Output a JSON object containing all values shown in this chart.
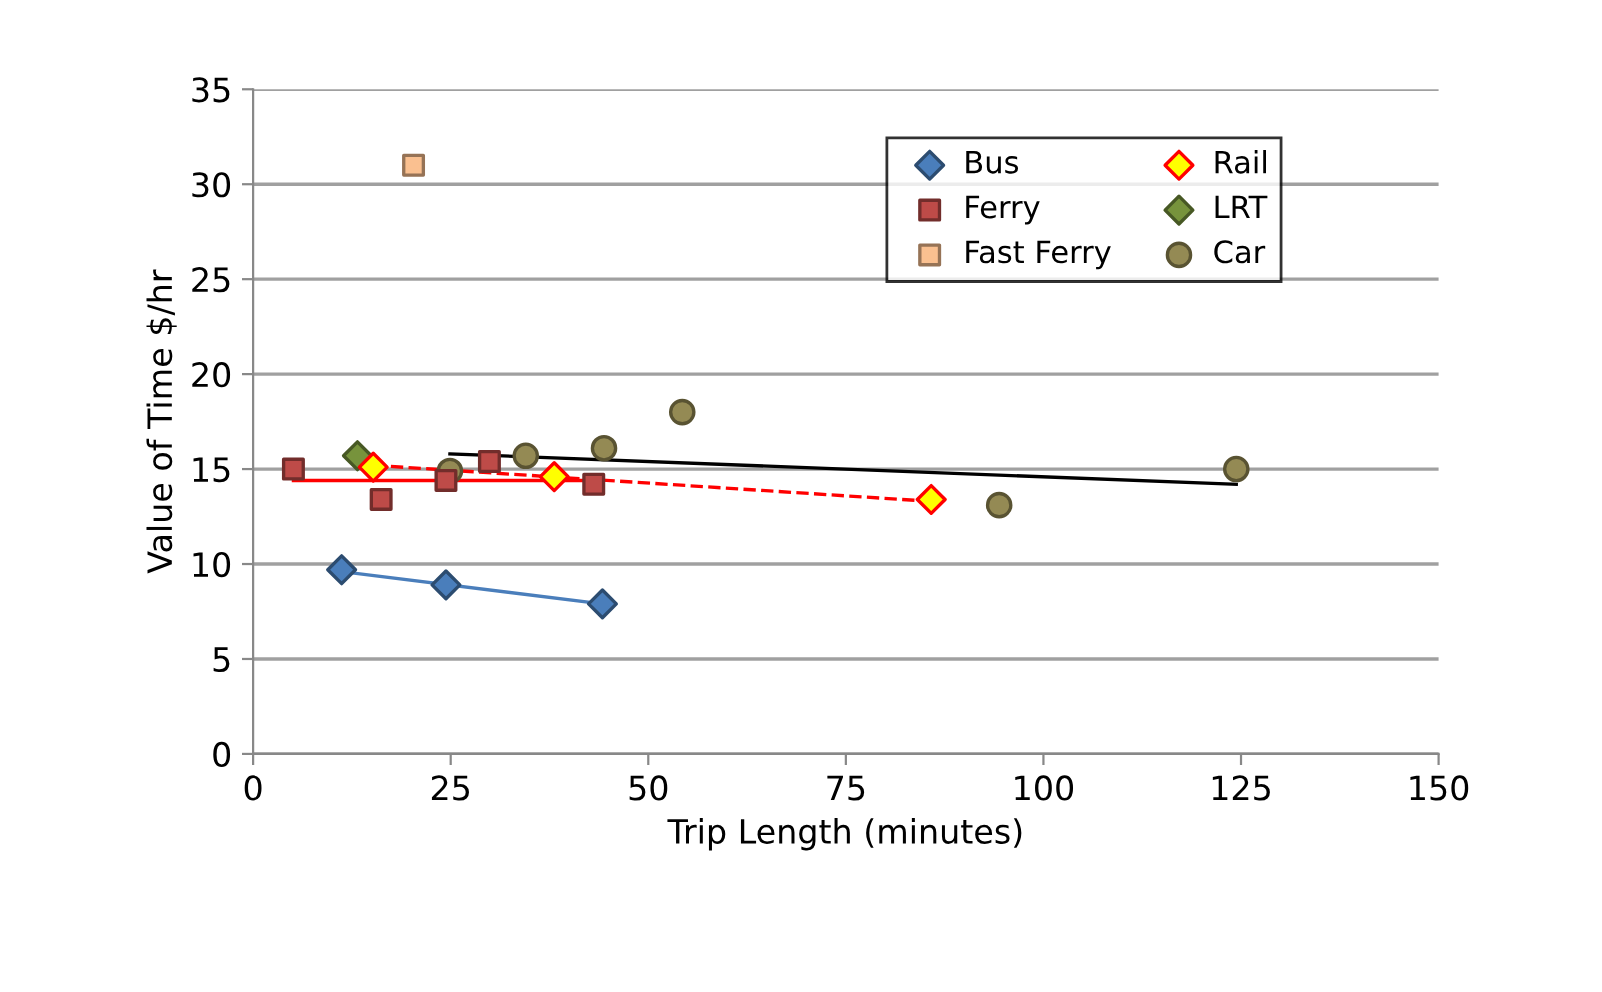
{
  "chart_data": {
    "type": "scatter",
    "xlabel": "Trip Length (minutes)",
    "ylabel": "Value of Time $/hr",
    "xlim": [
      0,
      150
    ],
    "xticks": [
      0,
      25,
      50,
      75,
      100,
      125,
      150
    ],
    "ylim": [
      0,
      35
    ],
    "yticks": [
      0,
      5,
      10,
      15,
      20,
      25,
      30,
      35
    ],
    "grid": "y",
    "legend": "top right",
    "series": [
      {
        "name": "Bus",
        "color": "#4a7ebb",
        "marker": "diamond",
        "x": [
          11.2,
          24.4,
          44.2
        ],
        "values": [
          9.7,
          8.9,
          7.9
        ]
      },
      {
        "name": "Ferry",
        "color": "#be4b48",
        "marker": "square",
        "x": [
          5.1,
          16.2,
          24.4,
          29.9,
          43.1
        ],
        "values": [
          15.0,
          13.4,
          14.4,
          15.4,
          14.2
        ]
      },
      {
        "name": "Fast Ferry",
        "color": "#fac090",
        "marker": "square",
        "x": [
          20.3
        ],
        "values": [
          31.0
        ]
      },
      {
        "name": "Rail",
        "color": "#ffff00",
        "marker": "diamond",
        "x": [
          15.2,
          38.1,
          85.8
        ],
        "values": [
          15.1,
          14.6,
          13.4
        ]
      },
      {
        "name": "LRT",
        "color": "#77933c",
        "marker": "diamond",
        "x": [
          13.2
        ],
        "values": [
          15.7
        ]
      },
      {
        "name": "Car",
        "color": "#948a54",
        "marker": "circle",
        "x": [
          24.9,
          34.5,
          44.4,
          54.3,
          94.4,
          124.4
        ],
        "values": [
          14.9,
          15.7,
          16.1,
          18.0,
          13.1,
          15.0
        ]
      },
      {
        "type": "line",
        "color": "#4a7ebb",
        "line_style": "solid",
        "x": [
          11.2,
          44.2
        ],
        "values": [
          9.6,
          7.9
        ]
      },
      {
        "type": "line",
        "color": "#ff0000",
        "line_style": "solid",
        "x": [
          5.1,
          43.1
        ],
        "values": [
          14.4,
          14.4
        ]
      },
      {
        "type": "line",
        "color": "#ff0000",
        "line_style": "dashed",
        "x": [
          15.2,
          85.8
        ],
        "values": [
          15.2,
          13.3
        ]
      },
      {
        "type": "line",
        "color": "#000000",
        "line_style": "solid",
        "x": [
          24.9,
          124.4
        ],
        "values": [
          15.8,
          14.2
        ]
      }
    ]
  }
}
